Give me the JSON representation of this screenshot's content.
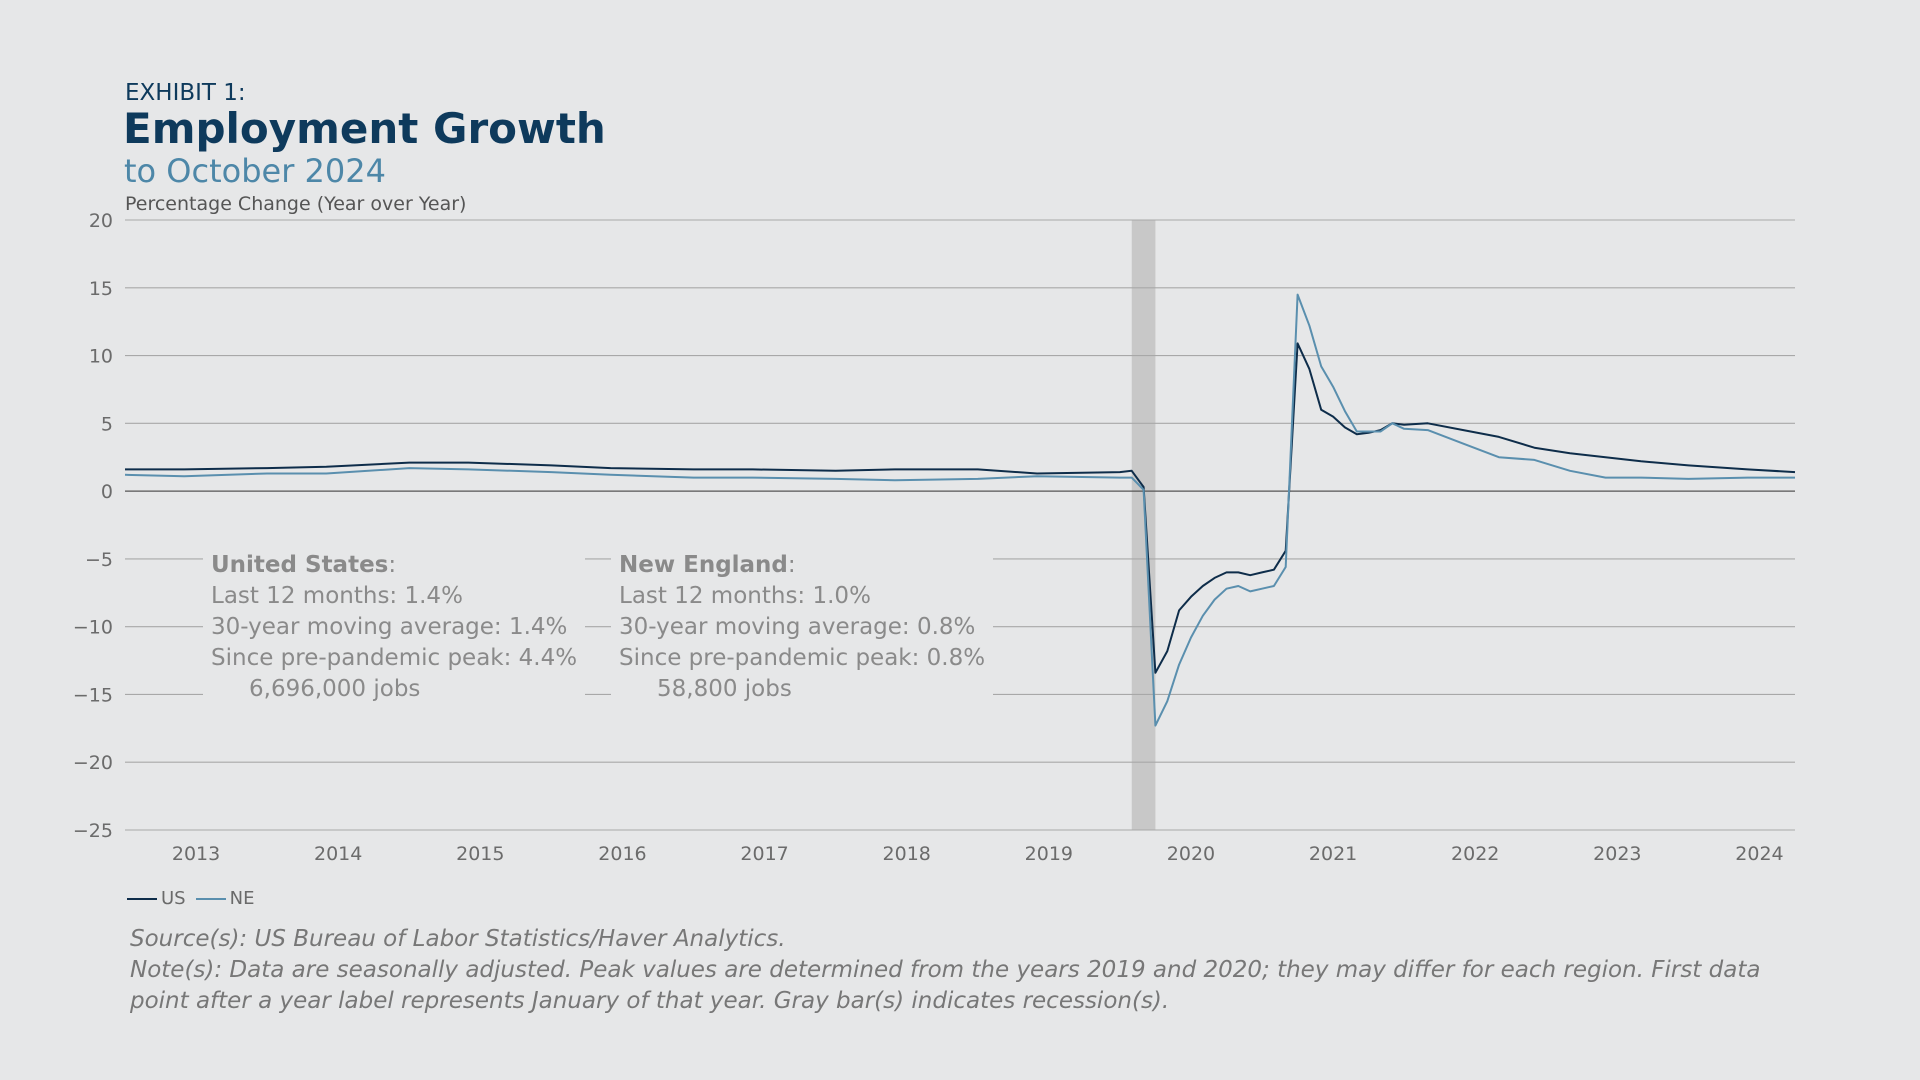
{
  "header": {
    "exhibit": "EXHIBIT 1:",
    "title": "Employment Growth",
    "subtitle": "to October 2024",
    "ylabel": "Percentage Change (Year over Year)"
  },
  "annotations": {
    "us": {
      "name": "United States",
      "colon": ":",
      "last12": "Last 12 months:  1.4%",
      "avg30": "30-year moving average: 1.4%",
      "since_peak": "Since pre-pandemic peak: 4.4%",
      "jobs": "6,696,000 jobs"
    },
    "ne": {
      "name": "New England",
      "colon": ":",
      "last12": "Last 12 months:  1.0%",
      "avg30": "30-year moving average: 0.8%",
      "since_peak": "Since pre-pandemic peak: 0.8%",
      "jobs": "58,800 jobs"
    }
  },
  "footer": {
    "source": "Source(s): US Bureau of Labor Statistics/Haver Analytics.",
    "note": "Note(s): Data are seasonally adjusted. Peak values are determined from the years 2019 and 2020; they may differ for each region. First data point after a year label represents January of that year. Gray bar(s) indicates recession(s)."
  },
  "chart_data": {
    "type": "line",
    "ylim": [
      -25,
      20
    ],
    "yticks": [
      "20",
      "15",
      "10",
      "5",
      "0",
      "−5",
      "−10",
      "−15",
      "−20",
      "−25"
    ],
    "ytick_values": [
      20,
      15,
      10,
      5,
      0,
      -5,
      -10,
      -15,
      -20,
      -25
    ],
    "xlim": [
      "2013-01",
      "2024-10"
    ],
    "xticks": [
      "2013",
      "2014",
      "2015",
      "2016",
      "2017",
      "2018",
      "2019",
      "2020",
      "2021",
      "2022",
      "2023",
      "2024"
    ],
    "grid": true,
    "recession": [
      "2020-02",
      "2020-04"
    ],
    "legend": "bottom-left",
    "colors": {
      "US": "#0e2d4a",
      "NE": "#5a8fae",
      "recession": "#c8c8c8",
      "grid": "#a8a8a8"
    },
    "series": [
      {
        "name": "US",
        "points": [
          [
            "2013-01",
            1.6
          ],
          [
            "2013-06",
            1.6
          ],
          [
            "2014-01",
            1.7
          ],
          [
            "2014-06",
            1.8
          ],
          [
            "2015-01",
            2.1
          ],
          [
            "2015-06",
            2.1
          ],
          [
            "2016-01",
            1.9
          ],
          [
            "2016-06",
            1.7
          ],
          [
            "2017-01",
            1.6
          ],
          [
            "2017-06",
            1.6
          ],
          [
            "2018-01",
            1.5
          ],
          [
            "2018-06",
            1.6
          ],
          [
            "2019-01",
            1.6
          ],
          [
            "2019-06",
            1.3
          ],
          [
            "2020-01",
            1.4
          ],
          [
            "2020-02",
            1.5
          ],
          [
            "2020-03",
            0.3
          ],
          [
            "2020-04",
            -13.4
          ],
          [
            "2020-05",
            -11.8
          ],
          [
            "2020-06",
            -8.8
          ],
          [
            "2020-07",
            -7.8
          ],
          [
            "2020-08",
            -7.0
          ],
          [
            "2020-09",
            -6.4
          ],
          [
            "2020-10",
            -6.0
          ],
          [
            "2020-11",
            -6.0
          ],
          [
            "2020-12",
            -6.2
          ],
          [
            "2021-01",
            -6.0
          ],
          [
            "2021-02",
            -5.8
          ],
          [
            "2021-03",
            -4.4
          ],
          [
            "2021-04",
            10.9
          ],
          [
            "2021-05",
            9.0
          ],
          [
            "2021-06",
            6.0
          ],
          [
            "2021-07",
            5.5
          ],
          [
            "2021-08",
            4.7
          ],
          [
            "2021-09",
            4.2
          ],
          [
            "2021-10",
            4.3
          ],
          [
            "2021-11",
            4.5
          ],
          [
            "2021-12",
            5.0
          ],
          [
            "2022-01",
            4.9
          ],
          [
            "2022-03",
            5.0
          ],
          [
            "2022-06",
            4.5
          ],
          [
            "2022-09",
            4.0
          ],
          [
            "2022-12",
            3.2
          ],
          [
            "2023-03",
            2.8
          ],
          [
            "2023-06",
            2.5
          ],
          [
            "2023-09",
            2.2
          ],
          [
            "2024-01",
            1.9
          ],
          [
            "2024-06",
            1.6
          ],
          [
            "2024-10",
            1.4
          ]
        ]
      },
      {
        "name": "NE",
        "points": [
          [
            "2013-01",
            1.2
          ],
          [
            "2013-06",
            1.1
          ],
          [
            "2014-01",
            1.3
          ],
          [
            "2014-06",
            1.3
          ],
          [
            "2015-01",
            1.7
          ],
          [
            "2015-06",
            1.6
          ],
          [
            "2016-01",
            1.4
          ],
          [
            "2016-06",
            1.2
          ],
          [
            "2017-01",
            1.0
          ],
          [
            "2017-06",
            1.0
          ],
          [
            "2018-01",
            0.9
          ],
          [
            "2018-06",
            0.8
          ],
          [
            "2019-01",
            0.9
          ],
          [
            "2019-06",
            1.1
          ],
          [
            "2020-01",
            1.0
          ],
          [
            "2020-02",
            1.0
          ],
          [
            "2020-03",
            0.1
          ],
          [
            "2020-04",
            -17.3
          ],
          [
            "2020-05",
            -15.5
          ],
          [
            "2020-06",
            -12.8
          ],
          [
            "2020-07",
            -10.8
          ],
          [
            "2020-08",
            -9.2
          ],
          [
            "2020-09",
            -8.0
          ],
          [
            "2020-10",
            -7.2
          ],
          [
            "2020-11",
            -7.0
          ],
          [
            "2020-12",
            -7.4
          ],
          [
            "2021-01",
            -7.2
          ],
          [
            "2021-02",
            -7.0
          ],
          [
            "2021-03",
            -5.6
          ],
          [
            "2021-04",
            14.5
          ],
          [
            "2021-05",
            12.2
          ],
          [
            "2021-06",
            9.2
          ],
          [
            "2021-07",
            7.7
          ],
          [
            "2021-08",
            5.9
          ],
          [
            "2021-09",
            4.4
          ],
          [
            "2021-10",
            4.4
          ],
          [
            "2021-11",
            4.4
          ],
          [
            "2021-12",
            5.0
          ],
          [
            "2022-01",
            4.6
          ],
          [
            "2022-03",
            4.5
          ],
          [
            "2022-06",
            3.5
          ],
          [
            "2022-09",
            2.5
          ],
          [
            "2022-12",
            2.3
          ],
          [
            "2023-03",
            1.5
          ],
          [
            "2023-06",
            1.0
          ],
          [
            "2023-09",
            1.0
          ],
          [
            "2024-01",
            0.9
          ],
          [
            "2024-06",
            1.0
          ],
          [
            "2024-10",
            1.0
          ]
        ]
      }
    ]
  }
}
